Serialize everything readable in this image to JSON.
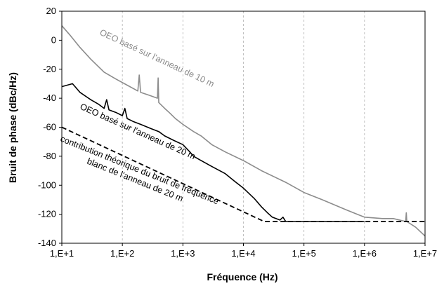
{
  "chart_data": {
    "type": "line",
    "xlabel": "Fréquence (Hz)",
    "ylabel": "Bruit de phase (dBc/Hz)",
    "x_scale": "log",
    "xlim": [
      10,
      10000000
    ],
    "ylim": [
      -140,
      20
    ],
    "x_ticks": [
      "1,E+1",
      "1,E+2",
      "1,E+3",
      "1,E+4",
      "1,E+5",
      "1,E+6",
      "1,E+7"
    ],
    "y_ticks": [
      "20",
      "0",
      "-20",
      "-40",
      "-60",
      "-80",
      "-100",
      "-120",
      "-140"
    ],
    "grid": "dashed vertical, per decade",
    "legend": "none",
    "series": [
      {
        "label": "OEO basé sur l'anneau de 10 m",
        "color": "#8c8c8c",
        "style": "solid",
        "x": [
          10,
          14,
          20,
          30,
          50,
          80,
          120,
          180,
          190,
          200,
          280,
          380,
          390,
          400,
          500,
          600,
          750,
          1000,
          1500,
          2000,
          3000,
          5000,
          10000,
          20000,
          50000,
          100000,
          200000,
          500000,
          1000000,
          2000000,
          3000000,
          4800000,
          4900000,
          5000000,
          7000000,
          10000000
        ],
        "y": [
          10,
          3,
          -5,
          -13,
          -22,
          -27,
          -31,
          -35,
          -24,
          -36,
          -38,
          -40,
          -26,
          -43,
          -47,
          -50,
          -54,
          -58,
          -63,
          -66,
          -72,
          -77,
          -83,
          -90,
          -98,
          -105,
          -110,
          -117,
          -122,
          -123,
          -123,
          -125,
          -119,
          -125,
          -129,
          -135
        ]
      },
      {
        "label": "OEO basé sur l'anneau de 20 m",
        "color": "#000000",
        "style": "solid",
        "x": [
          10,
          15,
          20,
          30,
          40,
          50,
          55,
          60,
          80,
          100,
          110,
          120,
          150,
          200,
          300,
          400,
          500,
          700,
          1000,
          1300,
          1500,
          2000,
          3000,
          5000,
          7000,
          10000,
          15000,
          20000,
          25000,
          30000,
          40000,
          45000,
          50000,
          100000,
          1000000
        ],
        "y": [
          -32,
          -30,
          -36,
          -41,
          -44,
          -47,
          -41,
          -48,
          -50,
          -52,
          -47,
          -54,
          -56,
          -58,
          -61,
          -63,
          -66,
          -69,
          -72,
          -77,
          -80,
          -83,
          -87,
          -92,
          -97,
          -102,
          -109,
          -115,
          -119,
          -122,
          -124,
          -122,
          -125,
          -125,
          -125
        ]
      },
      {
        "label": "contribution théorique du bruit de fréquence blanc de l'anneau de 20 m",
        "color": "#000000",
        "style": "dashed",
        "x": [
          10,
          22000,
          10000000
        ],
        "y": [
          -60,
          -125,
          -125
        ]
      }
    ]
  }
}
